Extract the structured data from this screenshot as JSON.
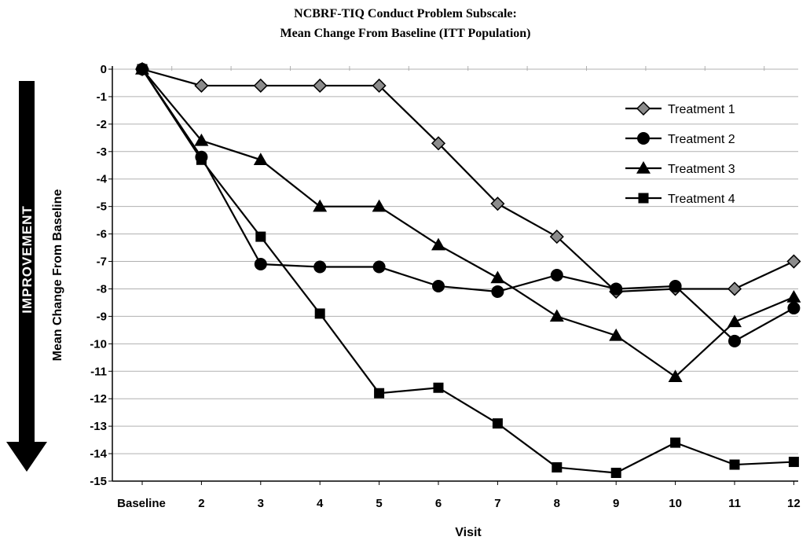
{
  "chart_data": {
    "type": "line",
    "title": "NCBRF-TIQ Conduct Problem Subscale:",
    "subtitle": "Mean Change From Baseline (ITT Population)",
    "xlabel": "Visit",
    "ylabel": "Mean Change From Baseline",
    "side_label": "IMPROVEMENT",
    "categories": [
      "Baseline",
      "2",
      "3",
      "4",
      "5",
      "6",
      "7",
      "8",
      "9",
      "10",
      "11",
      "12"
    ],
    "ylim": [
      -15,
      0
    ],
    "yticks": [
      "0",
      "-1",
      "-2",
      "-3",
      "-4",
      "-5",
      "-6",
      "-7",
      "-8",
      "-9",
      "-10",
      "-11",
      "-12",
      "-13",
      "-14",
      "-15"
    ],
    "grid": true,
    "legend_position": "top-right",
    "series": [
      {
        "name": "Treatment 1",
        "marker": "diamond",
        "values": [
          0,
          -0.6,
          -0.6,
          -0.6,
          -0.6,
          -2.7,
          -4.9,
          -6.1,
          -8.1,
          -8.0,
          -8.0,
          -7.0
        ]
      },
      {
        "name": "Treatment 2",
        "marker": "circle",
        "values": [
          0,
          -3.2,
          -7.1,
          -7.2,
          -7.2,
          -7.9,
          -8.1,
          -7.5,
          -8.0,
          -7.9,
          -9.9,
          -8.7
        ]
      },
      {
        "name": "Treatment 3",
        "marker": "triangle",
        "values": [
          0,
          -2.6,
          -3.3,
          -5.0,
          -5.0,
          -6.4,
          -7.6,
          -9.0,
          -9.7,
          -11.2,
          -9.2,
          -8.3
        ]
      },
      {
        "name": "Treatment 4",
        "marker": "square",
        "values": [
          0,
          -3.3,
          -6.1,
          -8.9,
          -11.8,
          -11.6,
          -12.9,
          -14.5,
          -14.7,
          -13.6,
          -14.4,
          -14.3
        ]
      }
    ],
    "colors": {
      "line": "#000000",
      "diamond_fill": "#8c8c8c",
      "grid": "#b0b0b0",
      "axis": "#000000"
    }
  }
}
